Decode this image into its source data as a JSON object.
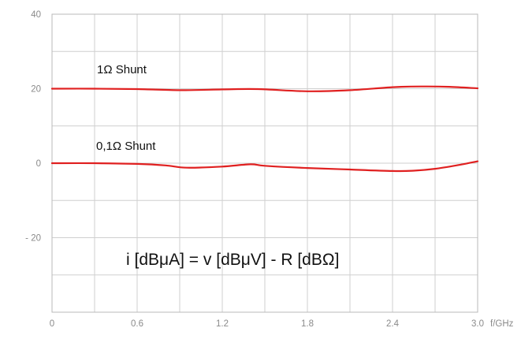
{
  "chart_data": {
    "type": "line",
    "x_unit_label": "f/GHz",
    "xlim": [
      0,
      3.0
    ],
    "ylim": [
      -40,
      40
    ],
    "x_ticks": [
      "0",
      "0.6",
      "1.2",
      "1.8",
      "2.4",
      "3.0"
    ],
    "y_ticks": [
      "40",
      "20",
      "0",
      "- 20"
    ],
    "grid": true,
    "series": [
      {
        "name": "1Ω Shunt",
        "color": "#e02020",
        "x": [
          0,
          0.3,
          0.6,
          0.9,
          1.2,
          1.45,
          1.8,
          2.1,
          2.4,
          2.6,
          2.8,
          3.0
        ],
        "y": [
          20.0,
          20.0,
          19.9,
          19.6,
          19.8,
          19.9,
          19.3,
          19.6,
          20.4,
          20.6,
          20.5,
          20.1
        ]
      },
      {
        "name": "0,1Ω Shunt",
        "color": "#e02020",
        "x": [
          0,
          0.3,
          0.6,
          0.8,
          0.95,
          1.2,
          1.4,
          1.5,
          1.8,
          2.1,
          2.4,
          2.55,
          2.7,
          2.85,
          3.0
        ],
        "y": [
          0.0,
          0.0,
          -0.2,
          -0.6,
          -1.2,
          -0.9,
          -0.3,
          -0.7,
          -1.3,
          -1.7,
          -2.1,
          -2.0,
          -1.5,
          -0.6,
          0.5
        ]
      }
    ],
    "annotations": {
      "series1_label": "1Ω Shunt",
      "series2_label": "0,1Ω Shunt",
      "formula": "i [dBμA] = v [dBμV] - R [dBΩ]"
    }
  }
}
